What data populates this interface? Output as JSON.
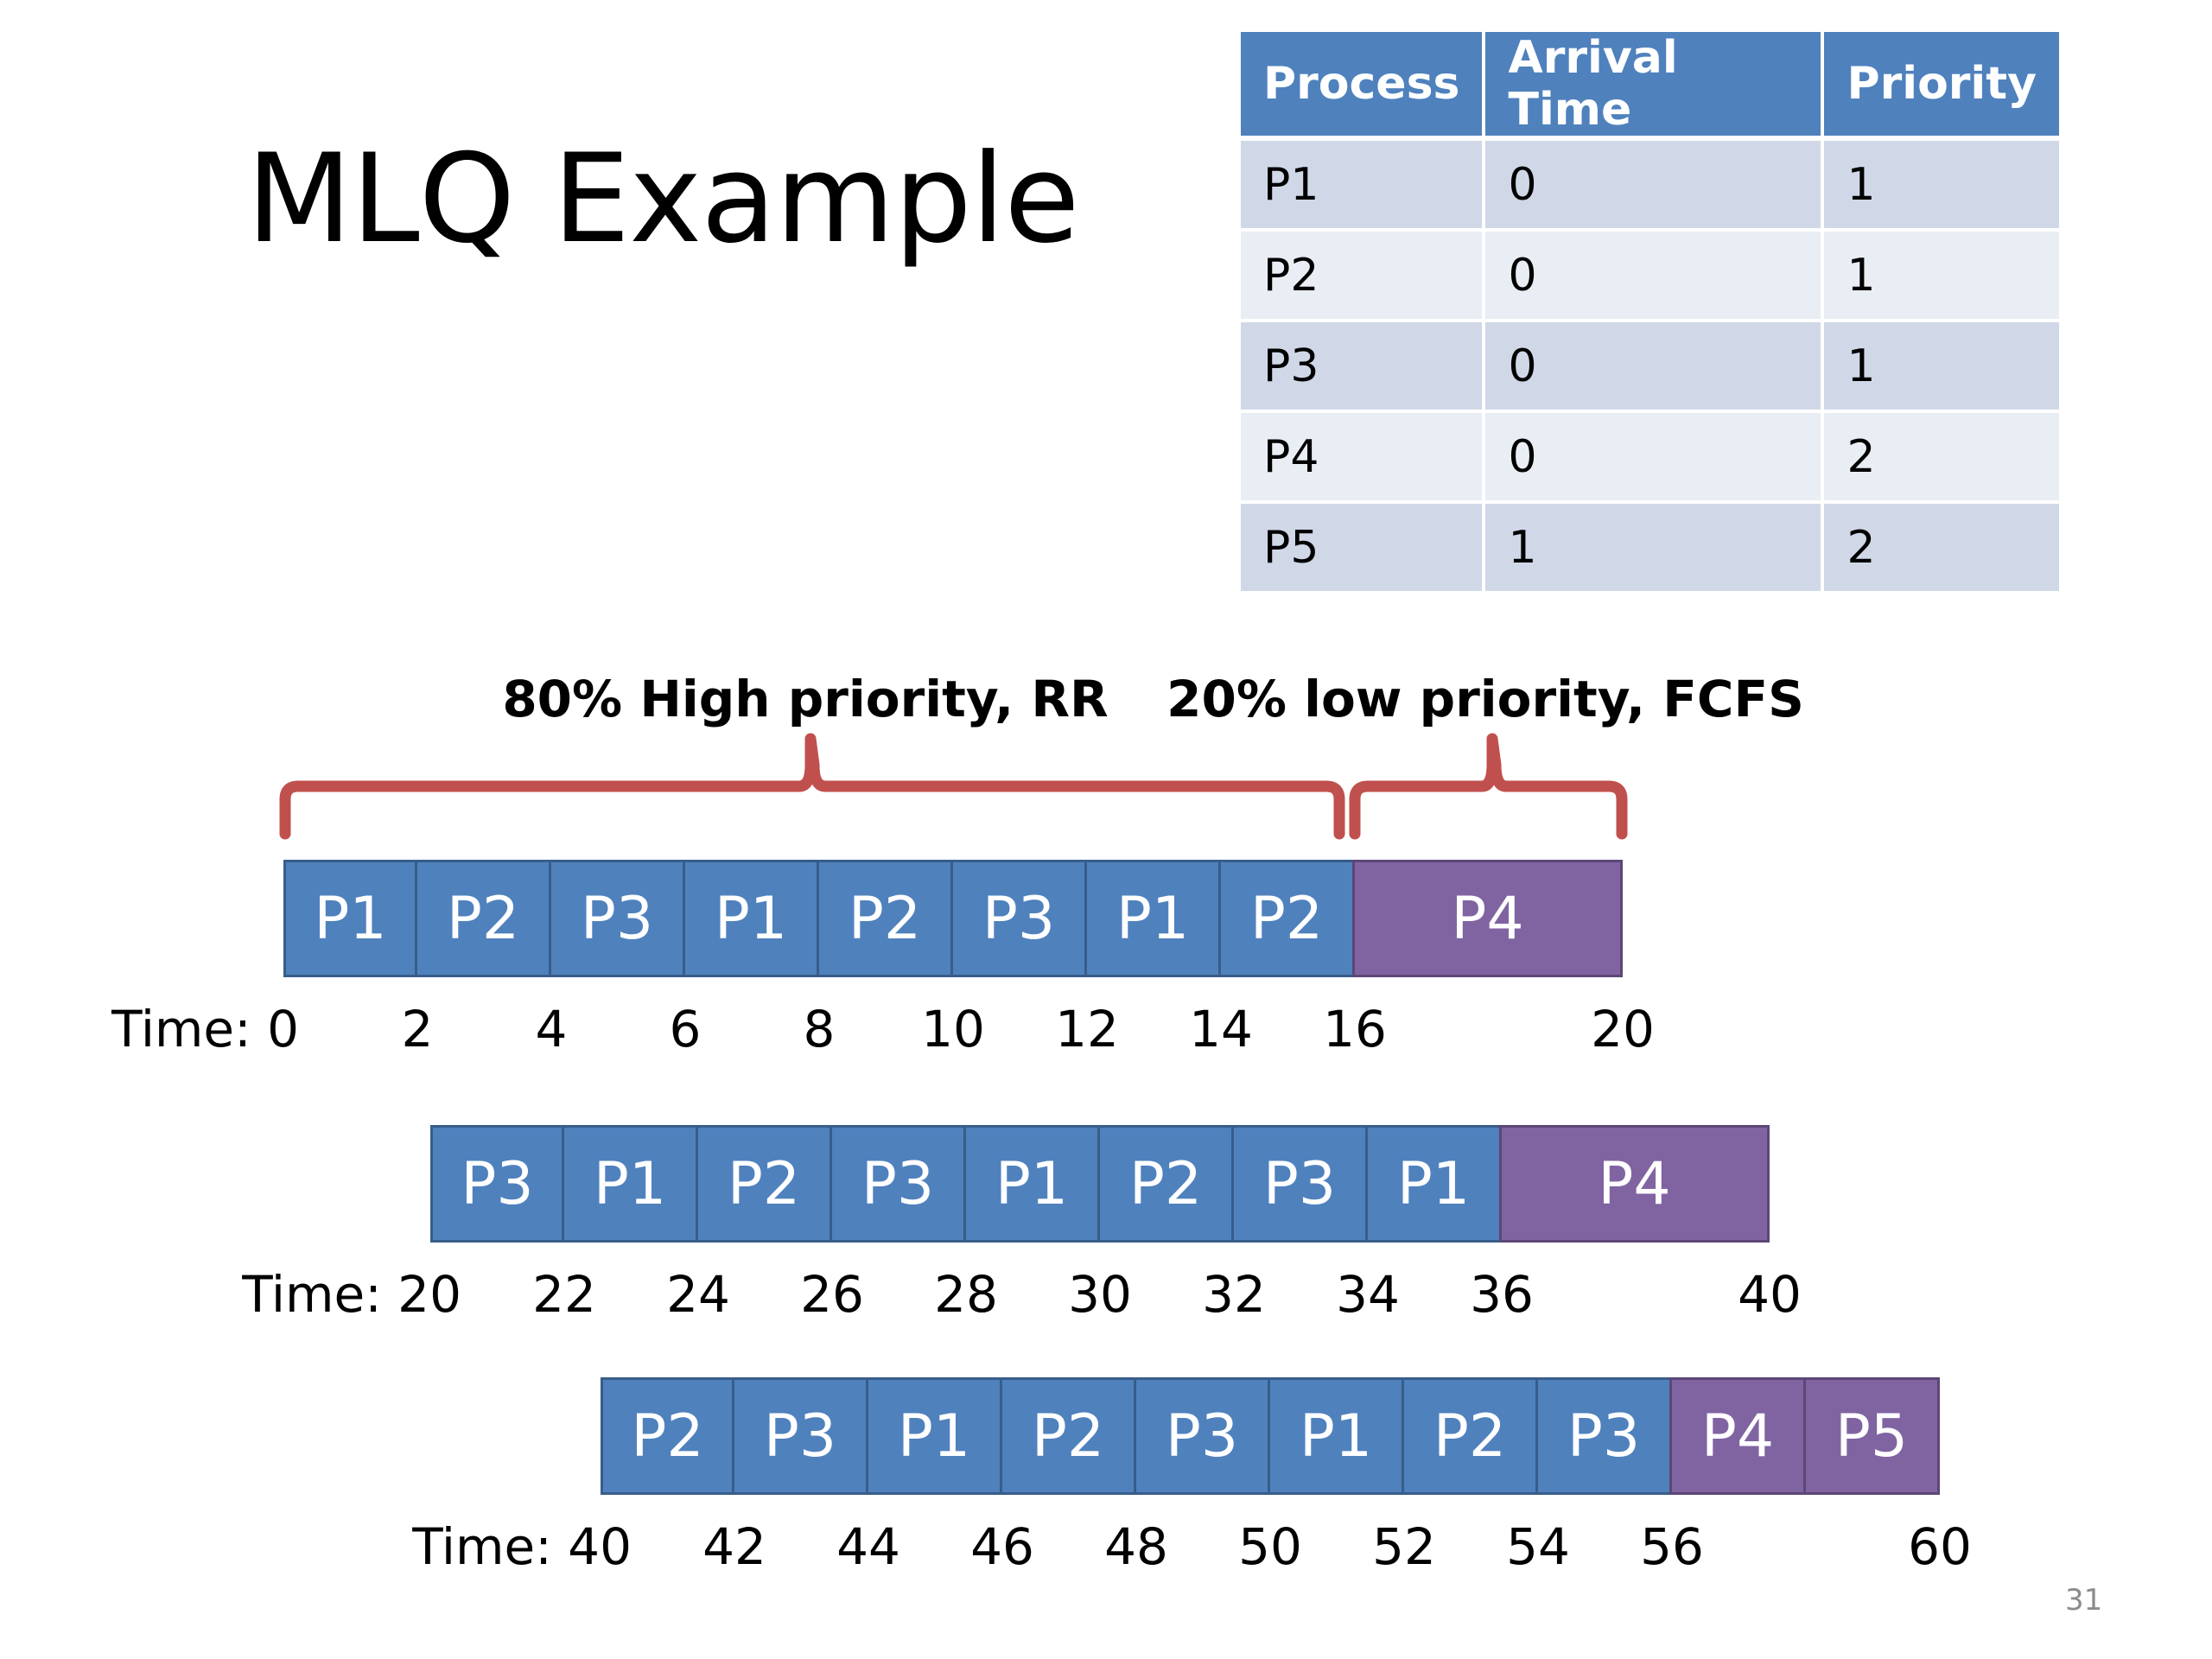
{
  "slide_title": "MLQ Example",
  "page_number": "31",
  "colors": {
    "high": "#4f81bd",
    "low": "#8064a2",
    "brace": "#c0504d"
  },
  "process_table": {
    "headers": [
      "Process",
      "Arrival Time",
      "Priority"
    ],
    "rows": [
      [
        "P1",
        "0",
        "1"
      ],
      [
        "P2",
        "0",
        "1"
      ],
      [
        "P3",
        "0",
        "1"
      ],
      [
        "P4",
        "0",
        "2"
      ],
      [
        "P5",
        "1",
        "2"
      ]
    ]
  },
  "braces": {
    "high_label": "80% High priority, RR",
    "low_label": "20% low priority, FCFS"
  },
  "gantt_rows": [
    {
      "time_prefix": "Time: 0",
      "start": 0,
      "segments": [
        {
          "label": "P1",
          "start": 0,
          "end": 2,
          "queue": "high"
        },
        {
          "label": "P2",
          "start": 2,
          "end": 4,
          "queue": "high"
        },
        {
          "label": "P3",
          "start": 4,
          "end": 6,
          "queue": "high"
        },
        {
          "label": "P1",
          "start": 6,
          "end": 8,
          "queue": "high"
        },
        {
          "label": "P2",
          "start": 8,
          "end": 10,
          "queue": "high"
        },
        {
          "label": "P3",
          "start": 10,
          "end": 12,
          "queue": "high"
        },
        {
          "label": "P1",
          "start": 12,
          "end": 14,
          "queue": "high"
        },
        {
          "label": "P2",
          "start": 14,
          "end": 16,
          "queue": "high"
        },
        {
          "label": "P4",
          "start": 16,
          "end": 20,
          "queue": "low"
        }
      ],
      "ticks": [
        "2",
        "4",
        "6",
        "8",
        "10",
        "12",
        "14",
        "16",
        "20"
      ]
    },
    {
      "time_prefix": "Time: 20",
      "start": 20,
      "segments": [
        {
          "label": "P3",
          "start": 20,
          "end": 22,
          "queue": "high"
        },
        {
          "label": "P1",
          "start": 22,
          "end": 24,
          "queue": "high"
        },
        {
          "label": "P2",
          "start": 24,
          "end": 26,
          "queue": "high"
        },
        {
          "label": "P3",
          "start": 26,
          "end": 28,
          "queue": "high"
        },
        {
          "label": "P1",
          "start": 28,
          "end": 30,
          "queue": "high"
        },
        {
          "label": "P2",
          "start": 30,
          "end": 32,
          "queue": "high"
        },
        {
          "label": "P3",
          "start": 32,
          "end": 34,
          "queue": "high"
        },
        {
          "label": "P1",
          "start": 34,
          "end": 36,
          "queue": "high"
        },
        {
          "label": "P4",
          "start": 36,
          "end": 40,
          "queue": "low"
        }
      ],
      "ticks": [
        "22",
        "24",
        "26",
        "28",
        "30",
        "32",
        "34",
        "36",
        "40"
      ]
    },
    {
      "time_prefix": "Time: 40",
      "start": 40,
      "segments": [
        {
          "label": "P2",
          "start": 40,
          "end": 42,
          "queue": "high"
        },
        {
          "label": "P3",
          "start": 42,
          "end": 44,
          "queue": "high"
        },
        {
          "label": "P1",
          "start": 44,
          "end": 46,
          "queue": "high"
        },
        {
          "label": "P2",
          "start": 46,
          "end": 48,
          "queue": "high"
        },
        {
          "label": "P3",
          "start": 48,
          "end": 50,
          "queue": "high"
        },
        {
          "label": "P1",
          "start": 50,
          "end": 52,
          "queue": "high"
        },
        {
          "label": "P2",
          "start": 52,
          "end": 54,
          "queue": "high"
        },
        {
          "label": "P3",
          "start": 54,
          "end": 56,
          "queue": "high"
        },
        {
          "label": "P4",
          "start": 56,
          "end": 58,
          "queue": "low"
        },
        {
          "label": "P5",
          "start": 58,
          "end": 60,
          "queue": "low"
        }
      ],
      "ticks": [
        "42",
        "44",
        "46",
        "48",
        "50",
        "52",
        "54",
        "56",
        "60"
      ]
    }
  ]
}
